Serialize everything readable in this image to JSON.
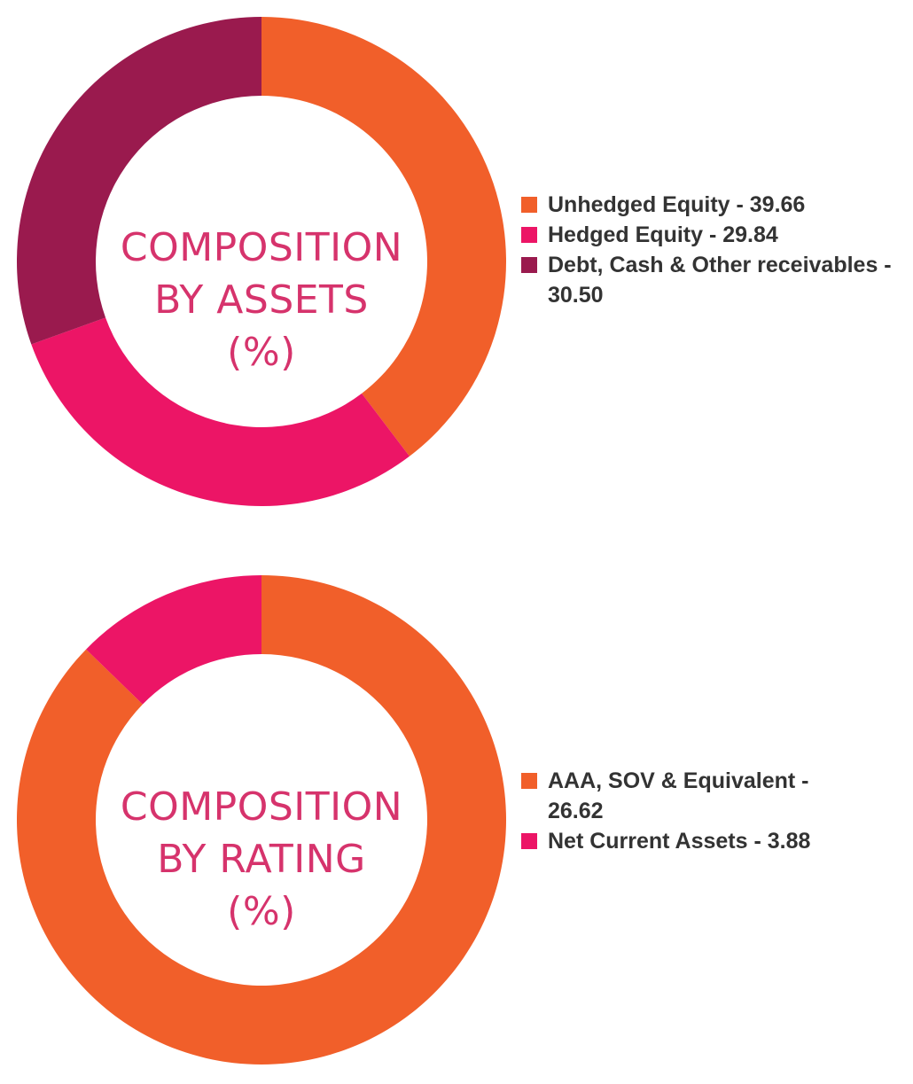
{
  "colors": {
    "orange": "#f15f2a",
    "pink": "#ec1566",
    "maroon": "#9a1a4e",
    "label_text": "#d6336c",
    "legend_text": "#333333"
  },
  "chart_data": [
    {
      "type": "pie",
      "center_label": [
        "COMPOSITION",
        "BY ASSETS",
        "(%)"
      ],
      "slices": [
        {
          "label": "Unhedged Equity",
          "value": 39.66,
          "color": "#f15f2a"
        },
        {
          "label": "Hedged Equity",
          "value": 29.84,
          "color": "#ec1566"
        },
        {
          "label": "Debt, Cash & Other receivables",
          "value": 30.5,
          "color": "#9a1a4e"
        }
      ],
      "legend_text": [
        "Unhedged Equity - 39.66",
        "Hedged Equity - 29.84",
        "Debt, Cash & Other receivables - 30.50"
      ]
    },
    {
      "type": "pie",
      "center_label": [
        "COMPOSITION",
        "BY RATING",
        "(%)"
      ],
      "slices": [
        {
          "label": "AAA, SOV & Equivalent",
          "value": 26.62,
          "color": "#f15f2a"
        },
        {
          "label": "Net Current Assets",
          "value": 3.88,
          "color": "#ec1566"
        }
      ],
      "legend_text": [
        "AAA, SOV & Equivalent - 26.62",
        "Net Current Assets - 3.88"
      ]
    }
  ]
}
